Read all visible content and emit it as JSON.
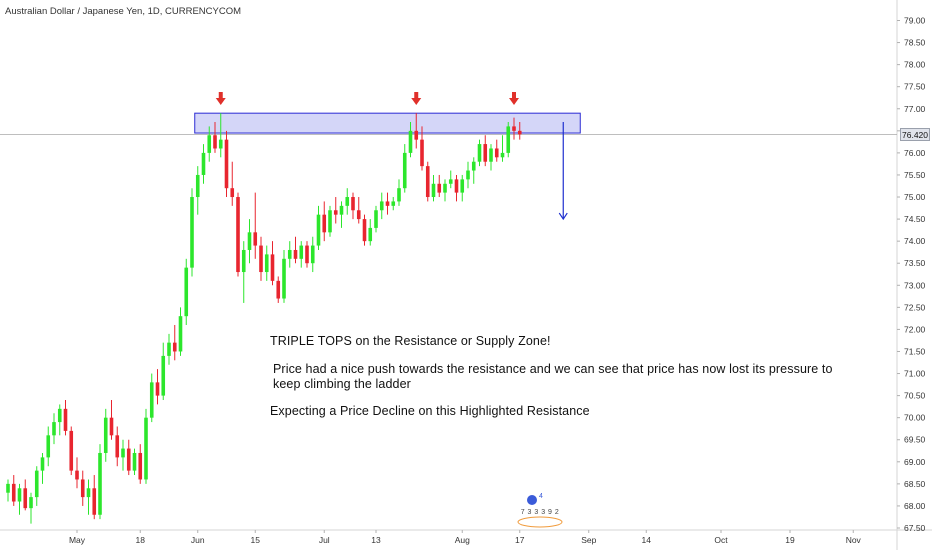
{
  "header": {
    "title": "Australian Dollar / Japanese Yen, 1D, CURRENCYCOM"
  },
  "colors": {
    "up": "#2ce62c",
    "down": "#e8252f",
    "zone_fill": "#c6c8f5",
    "zone_stroke": "#2a2ad4",
    "arrow_red": "#e0302a",
    "arrow_blue": "#1e2fcf"
  },
  "last_price_label": "76.420",
  "annotations": {
    "headline": "TRIPLE TOPS on the Resistance or Supply Zone!",
    "body_line1": "Price had a nice push towards the resistance and we can see that price has now lost its pressure to",
    "body_line2": "keep climbing the ladder",
    "expectation": "Expecting a Price Decline on this Highlighted Resistance"
  },
  "chart_data": {
    "type": "candlestick",
    "title": "Australian Dollar / Japanese Yen, 1D, CURRENCYCOM",
    "y_ticks": [
      "67.50",
      "68.00",
      "68.50",
      "69.00",
      "69.50",
      "70.00",
      "70.50",
      "71.00",
      "71.50",
      "72.00",
      "72.50",
      "73.00",
      "73.50",
      "74.00",
      "74.50",
      "75.00",
      "75.50",
      "76.00",
      "76.50",
      "77.00",
      "77.50",
      "78.00",
      "78.50",
      "79.00"
    ],
    "ylim": [
      67.5,
      79.2
    ],
    "x_ticks": [
      {
        "label": "May",
        "index": 12
      },
      {
        "label": "18",
        "index": 23
      },
      {
        "label": "Jun",
        "index": 33
      },
      {
        "label": "15",
        "index": 43
      },
      {
        "label": "Jul",
        "index": 55
      },
      {
        "label": "13",
        "index": 64
      },
      {
        "label": "Aug",
        "index": 79
      },
      {
        "label": "17",
        "index": 89
      },
      {
        "label": "Sep",
        "index": 101
      },
      {
        "label": "14",
        "index": 111
      },
      {
        "label": "Oct",
        "index": 124
      },
      {
        "label": "19",
        "index": 136
      },
      {
        "label": "Nov",
        "index": 147
      }
    ],
    "last_price": 76.42,
    "resistance_zone": {
      "low": 76.45,
      "high": 76.9,
      "from_index": 33,
      "to_index": 99
    },
    "triple_top_indices": [
      37,
      71,
      88
    ],
    "candles": [
      {
        "o": 68.3,
        "h": 68.6,
        "l": 68.1,
        "c": 68.5
      },
      {
        "o": 68.5,
        "h": 68.7,
        "l": 68.0,
        "c": 68.1
      },
      {
        "o": 68.1,
        "h": 68.5,
        "l": 67.8,
        "c": 68.4
      },
      {
        "o": 68.4,
        "h": 68.6,
        "l": 67.9,
        "c": 67.95
      },
      {
        "o": 67.95,
        "h": 68.3,
        "l": 67.6,
        "c": 68.2
      },
      {
        "o": 68.2,
        "h": 68.9,
        "l": 68.0,
        "c": 68.8
      },
      {
        "o": 68.8,
        "h": 69.2,
        "l": 68.5,
        "c": 69.1
      },
      {
        "o": 69.1,
        "h": 69.8,
        "l": 68.9,
        "c": 69.6
      },
      {
        "o": 69.6,
        "h": 70.1,
        "l": 69.4,
        "c": 69.9
      },
      {
        "o": 69.9,
        "h": 70.3,
        "l": 69.6,
        "c": 70.2
      },
      {
        "o": 70.2,
        "h": 70.4,
        "l": 69.6,
        "c": 69.7
      },
      {
        "o": 69.7,
        "h": 69.8,
        "l": 68.7,
        "c": 68.8
      },
      {
        "o": 68.8,
        "h": 69.1,
        "l": 68.4,
        "c": 68.6
      },
      {
        "o": 68.6,
        "h": 68.8,
        "l": 68.0,
        "c": 68.2
      },
      {
        "o": 68.2,
        "h": 68.6,
        "l": 67.8,
        "c": 68.4
      },
      {
        "o": 68.4,
        "h": 68.7,
        "l": 67.7,
        "c": 67.8
      },
      {
        "o": 67.8,
        "h": 69.4,
        "l": 67.7,
        "c": 69.2
      },
      {
        "o": 69.2,
        "h": 70.2,
        "l": 69.0,
        "c": 70.0
      },
      {
        "o": 70.0,
        "h": 70.4,
        "l": 69.5,
        "c": 69.6
      },
      {
        "o": 69.6,
        "h": 69.8,
        "l": 68.9,
        "c": 69.1
      },
      {
        "o": 69.1,
        "h": 69.5,
        "l": 68.8,
        "c": 69.3
      },
      {
        "o": 69.3,
        "h": 69.5,
        "l": 68.7,
        "c": 68.8
      },
      {
        "o": 68.8,
        "h": 69.3,
        "l": 68.7,
        "c": 69.2
      },
      {
        "o": 69.2,
        "h": 69.4,
        "l": 68.5,
        "c": 68.6
      },
      {
        "o": 68.6,
        "h": 70.2,
        "l": 68.5,
        "c": 70.0
      },
      {
        "o": 70.0,
        "h": 71.0,
        "l": 69.9,
        "c": 70.8
      },
      {
        "o": 70.8,
        "h": 71.1,
        "l": 70.3,
        "c": 70.5
      },
      {
        "o": 70.5,
        "h": 71.7,
        "l": 70.4,
        "c": 71.4
      },
      {
        "o": 71.4,
        "h": 71.9,
        "l": 71.2,
        "c": 71.7
      },
      {
        "o": 71.7,
        "h": 72.1,
        "l": 71.3,
        "c": 71.5
      },
      {
        "o": 71.5,
        "h": 72.5,
        "l": 71.4,
        "c": 72.3
      },
      {
        "o": 72.3,
        "h": 73.6,
        "l": 72.1,
        "c": 73.4
      },
      {
        "o": 73.4,
        "h": 75.2,
        "l": 73.2,
        "c": 75.0
      },
      {
        "o": 75.0,
        "h": 75.7,
        "l": 74.6,
        "c": 75.5
      },
      {
        "o": 75.5,
        "h": 76.2,
        "l": 75.3,
        "c": 76.0
      },
      {
        "o": 76.0,
        "h": 76.6,
        "l": 75.8,
        "c": 76.4
      },
      {
        "o": 76.4,
        "h": 76.7,
        "l": 76.0,
        "c": 76.1
      },
      {
        "o": 76.1,
        "h": 76.9,
        "l": 75.9,
        "c": 76.3
      },
      {
        "o": 76.3,
        "h": 76.5,
        "l": 75.0,
        "c": 75.2
      },
      {
        "o": 75.2,
        "h": 75.8,
        "l": 74.8,
        "c": 75.0
      },
      {
        "o": 75.0,
        "h": 75.1,
        "l": 73.2,
        "c": 73.3
      },
      {
        "o": 73.3,
        "h": 74.0,
        "l": 72.6,
        "c": 73.8
      },
      {
        "o": 73.8,
        "h": 74.5,
        "l": 73.5,
        "c": 74.2
      },
      {
        "o": 74.2,
        "h": 75.1,
        "l": 73.6,
        "c": 73.9
      },
      {
        "o": 73.9,
        "h": 74.1,
        "l": 73.1,
        "c": 73.3
      },
      {
        "o": 73.3,
        "h": 73.9,
        "l": 73.1,
        "c": 73.7
      },
      {
        "o": 73.7,
        "h": 74.0,
        "l": 73.0,
        "c": 73.1
      },
      {
        "o": 73.1,
        "h": 73.2,
        "l": 72.6,
        "c": 72.7
      },
      {
        "o": 72.7,
        "h": 73.8,
        "l": 72.6,
        "c": 73.6
      },
      {
        "o": 73.6,
        "h": 74.0,
        "l": 73.4,
        "c": 73.8
      },
      {
        "o": 73.8,
        "h": 74.1,
        "l": 73.5,
        "c": 73.6
      },
      {
        "o": 73.6,
        "h": 74.0,
        "l": 73.4,
        "c": 73.9
      },
      {
        "o": 73.9,
        "h": 74.0,
        "l": 73.4,
        "c": 73.5
      },
      {
        "o": 73.5,
        "h": 74.1,
        "l": 73.3,
        "c": 73.9
      },
      {
        "o": 73.9,
        "h": 74.8,
        "l": 73.8,
        "c": 74.6
      },
      {
        "o": 74.6,
        "h": 74.9,
        "l": 74.0,
        "c": 74.2
      },
      {
        "o": 74.2,
        "h": 74.8,
        "l": 74.1,
        "c": 74.7
      },
      {
        "o": 74.7,
        "h": 75.0,
        "l": 74.4,
        "c": 74.6
      },
      {
        "o": 74.6,
        "h": 74.9,
        "l": 74.3,
        "c": 74.8
      },
      {
        "o": 74.8,
        "h": 75.2,
        "l": 74.6,
        "c": 75.0
      },
      {
        "o": 75.0,
        "h": 75.1,
        "l": 74.5,
        "c": 74.7
      },
      {
        "o": 74.7,
        "h": 75.0,
        "l": 74.4,
        "c": 74.5
      },
      {
        "o": 74.5,
        "h": 74.6,
        "l": 73.9,
        "c": 74.0
      },
      {
        "o": 74.0,
        "h": 74.5,
        "l": 73.9,
        "c": 74.3
      },
      {
        "o": 74.3,
        "h": 74.8,
        "l": 74.2,
        "c": 74.7
      },
      {
        "o": 74.7,
        "h": 75.1,
        "l": 74.5,
        "c": 74.9
      },
      {
        "o": 74.9,
        "h": 75.1,
        "l": 74.6,
        "c": 74.8
      },
      {
        "o": 74.8,
        "h": 75.0,
        "l": 74.7,
        "c": 74.9
      },
      {
        "o": 74.9,
        "h": 75.4,
        "l": 74.8,
        "c": 75.2
      },
      {
        "o": 75.2,
        "h": 76.2,
        "l": 75.1,
        "c": 76.0
      },
      {
        "o": 76.0,
        "h": 76.7,
        "l": 75.9,
        "c": 76.5
      },
      {
        "o": 76.5,
        "h": 76.9,
        "l": 76.1,
        "c": 76.3
      },
      {
        "o": 76.3,
        "h": 76.6,
        "l": 75.6,
        "c": 75.7
      },
      {
        "o": 75.7,
        "h": 75.8,
        "l": 74.9,
        "c": 75.0
      },
      {
        "o": 75.0,
        "h": 75.5,
        "l": 74.9,
        "c": 75.3
      },
      {
        "o": 75.3,
        "h": 75.5,
        "l": 75.0,
        "c": 75.1
      },
      {
        "o": 75.1,
        "h": 75.4,
        "l": 74.9,
        "c": 75.3
      },
      {
        "o": 75.3,
        "h": 75.6,
        "l": 75.2,
        "c": 75.4
      },
      {
        "o": 75.4,
        "h": 75.5,
        "l": 74.9,
        "c": 75.1
      },
      {
        "o": 75.1,
        "h": 75.5,
        "l": 74.9,
        "c": 75.4
      },
      {
        "o": 75.4,
        "h": 75.8,
        "l": 75.2,
        "c": 75.6
      },
      {
        "o": 75.6,
        "h": 75.9,
        "l": 75.3,
        "c": 75.8
      },
      {
        "o": 75.8,
        "h": 76.3,
        "l": 75.7,
        "c": 76.2
      },
      {
        "o": 76.2,
        "h": 76.4,
        "l": 75.7,
        "c": 75.8
      },
      {
        "o": 75.8,
        "h": 76.2,
        "l": 75.6,
        "c": 76.1
      },
      {
        "o": 76.1,
        "h": 76.3,
        "l": 75.8,
        "c": 75.9
      },
      {
        "o": 75.9,
        "h": 76.4,
        "l": 75.8,
        "c": 76.0
      },
      {
        "o": 76.0,
        "h": 76.7,
        "l": 75.9,
        "c": 76.6
      },
      {
        "o": 76.6,
        "h": 76.8,
        "l": 76.3,
        "c": 76.5
      },
      {
        "o": 76.5,
        "h": 76.7,
        "l": 76.3,
        "c": 76.42
      }
    ]
  },
  "watermark": {
    "digits": "7 3 3 3 9 2",
    "badge": "4"
  }
}
